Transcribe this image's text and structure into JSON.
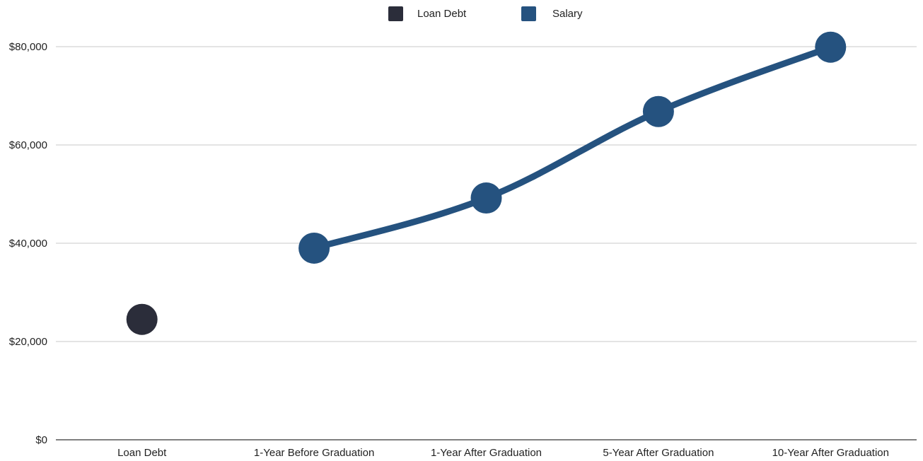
{
  "chart_data": {
    "type": "line",
    "categories": [
      "Loan Debt",
      "1-Year Before Graduation",
      "1-Year After Graduation",
      "5-Year After Graduation",
      "10-Year After Graduation"
    ],
    "series": [
      {
        "name": "Loan Debt",
        "color": "#2b2d3a",
        "values": [
          24500,
          null,
          null,
          null,
          null
        ]
      },
      {
        "name": "Salary",
        "color": "#25527f",
        "values": [
          null,
          39000,
          49200,
          66800,
          79900
        ]
      }
    ],
    "ylim": [
      0,
      80000
    ],
    "yticks": [
      0,
      20000,
      40000,
      60000,
      80000
    ],
    "ytick_labels": [
      "$0",
      "$20,000",
      "$40,000",
      "$60,000",
      "$80,000"
    ],
    "grid": true,
    "legend_position": "top-center",
    "title": "",
    "xlabel": "",
    "ylabel": ""
  }
}
